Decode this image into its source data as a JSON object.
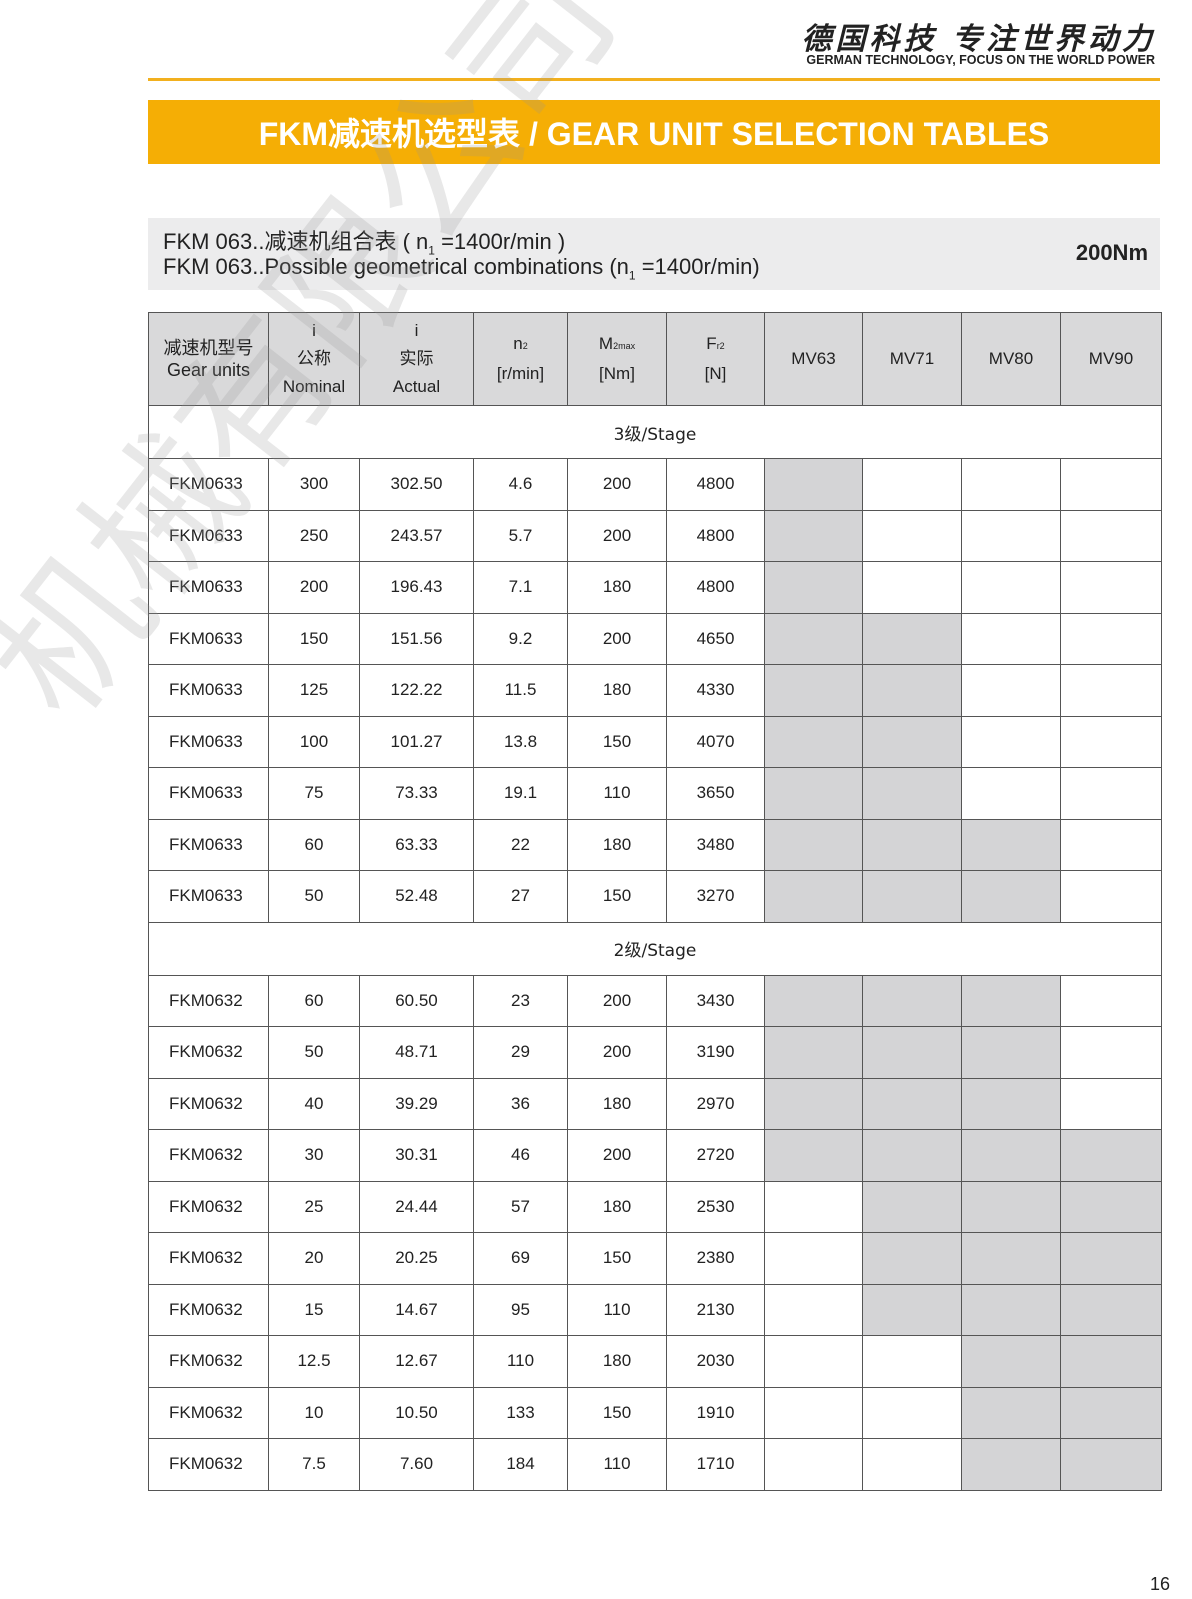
{
  "header": {
    "slogan_cn": "德国科技  专注世界动力",
    "slogan_en": "GERMAN TECHNOLOGY, FOCUS ON THE WORLD POWER",
    "accent_color": "#f5ae05"
  },
  "banner": {
    "title": "FKM减速机选型表 / GEAR UNIT SELECTION TABLES"
  },
  "subheading": {
    "line1_prefix": "FKM 063..减速机组合表 ( n",
    "line1_sub": "1",
    "line1_suffix": " =1400r/min )",
    "line2_prefix": "FKM 063..Possible geometrical combinations (n",
    "line2_sub": "1",
    "line2_suffix": " =1400r/min)",
    "torque": "200Nm"
  },
  "table": {
    "headers": {
      "gear_units_cn": "减速机型号",
      "gear_units_en": "Gear units",
      "i_nominal_sym": "i",
      "i_nominal_cn": "公称",
      "i_nominal_en": "Nominal",
      "i_actual_sym": "i",
      "i_actual_cn": "实际",
      "i_actual_en": "Actual",
      "n2": "n",
      "n2_sub": "2",
      "n2_unit": "[r/min]",
      "m2": "M",
      "m2_sub": "2max",
      "m2_unit": "[Nm]",
      "fr2": "F",
      "fr2_sub": "r2",
      "fr2_unit": "[N]",
      "motors": [
        "MV63",
        "MV71",
        "MV80",
        "MV90"
      ]
    },
    "shade_color": "#d4d4d6",
    "sections": [
      {
        "label": "3级/Stage",
        "rows": [
          {
            "unit": "FKM0633",
            "nominal": "300",
            "actual": "302.50",
            "n2": "4.6",
            "m2": "200",
            "fr2": "4800",
            "motors": [
              true,
              false,
              false,
              false
            ]
          },
          {
            "unit": "FKM0633",
            "nominal": "250",
            "actual": "243.57",
            "n2": "5.7",
            "m2": "200",
            "fr2": "4800",
            "motors": [
              true,
              false,
              false,
              false
            ]
          },
          {
            "unit": "FKM0633",
            "nominal": "200",
            "actual": "196.43",
            "n2": "7.1",
            "m2": "180",
            "fr2": "4800",
            "motors": [
              true,
              false,
              false,
              false
            ]
          },
          {
            "unit": "FKM0633",
            "nominal": "150",
            "actual": "151.56",
            "n2": "9.2",
            "m2": "200",
            "fr2": "4650",
            "motors": [
              true,
              true,
              false,
              false
            ]
          },
          {
            "unit": "FKM0633",
            "nominal": "125",
            "actual": "122.22",
            "n2": "11.5",
            "m2": "180",
            "fr2": "4330",
            "motors": [
              true,
              true,
              false,
              false
            ]
          },
          {
            "unit": "FKM0633",
            "nominal": "100",
            "actual": "101.27",
            "n2": "13.8",
            "m2": "150",
            "fr2": "4070",
            "motors": [
              true,
              true,
              false,
              false
            ]
          },
          {
            "unit": "FKM0633",
            "nominal": "75",
            "actual": "73.33",
            "n2": "19.1",
            "m2": "110",
            "fr2": "3650",
            "motors": [
              true,
              true,
              false,
              false
            ]
          },
          {
            "unit": "FKM0633",
            "nominal": "60",
            "actual": "63.33",
            "n2": "22",
            "m2": "180",
            "fr2": "3480",
            "motors": [
              true,
              true,
              true,
              false
            ]
          },
          {
            "unit": "FKM0633",
            "nominal": "50",
            "actual": "52.48",
            "n2": "27",
            "m2": "150",
            "fr2": "3270",
            "motors": [
              true,
              true,
              true,
              false
            ]
          }
        ]
      },
      {
        "label": "2级/Stage",
        "rows": [
          {
            "unit": "FKM0632",
            "nominal": "60",
            "actual": "60.50",
            "n2": "23",
            "m2": "200",
            "fr2": "3430",
            "motors": [
              true,
              true,
              true,
              false
            ]
          },
          {
            "unit": "FKM0632",
            "nominal": "50",
            "actual": "48.71",
            "n2": "29",
            "m2": "200",
            "fr2": "3190",
            "motors": [
              true,
              true,
              true,
              false
            ]
          },
          {
            "unit": "FKM0632",
            "nominal": "40",
            "actual": "39.29",
            "n2": "36",
            "m2": "180",
            "fr2": "2970",
            "motors": [
              true,
              true,
              true,
              false
            ]
          },
          {
            "unit": "FKM0632",
            "nominal": "30",
            "actual": "30.31",
            "n2": "46",
            "m2": "200",
            "fr2": "2720",
            "motors": [
              true,
              true,
              true,
              true
            ]
          },
          {
            "unit": "FKM0632",
            "nominal": "25",
            "actual": "24.44",
            "n2": "57",
            "m2": "180",
            "fr2": "2530",
            "motors": [
              false,
              true,
              true,
              true
            ]
          },
          {
            "unit": "FKM0632",
            "nominal": "20",
            "actual": "20.25",
            "n2": "69",
            "m2": "150",
            "fr2": "2380",
            "motors": [
              false,
              true,
              true,
              true
            ]
          },
          {
            "unit": "FKM0632",
            "nominal": "15",
            "actual": "14.67",
            "n2": "95",
            "m2": "110",
            "fr2": "2130",
            "motors": [
              false,
              true,
              true,
              true
            ]
          },
          {
            "unit": "FKM0632",
            "nominal": "12.5",
            "actual": "12.67",
            "n2": "110",
            "m2": "180",
            "fr2": "2030",
            "motors": [
              false,
              false,
              true,
              true
            ]
          },
          {
            "unit": "FKM0632",
            "nominal": "10",
            "actual": "10.50",
            "n2": "133",
            "m2": "150",
            "fr2": "1910",
            "motors": [
              false,
              false,
              true,
              true
            ]
          },
          {
            "unit": "FKM0632",
            "nominal": "7.5",
            "actual": "7.60",
            "n2": "184",
            "m2": "110",
            "fr2": "1710",
            "motors": [
              false,
              false,
              true,
              true
            ]
          }
        ]
      }
    ]
  },
  "watermark": "机械有限公司",
  "page_number": "16"
}
